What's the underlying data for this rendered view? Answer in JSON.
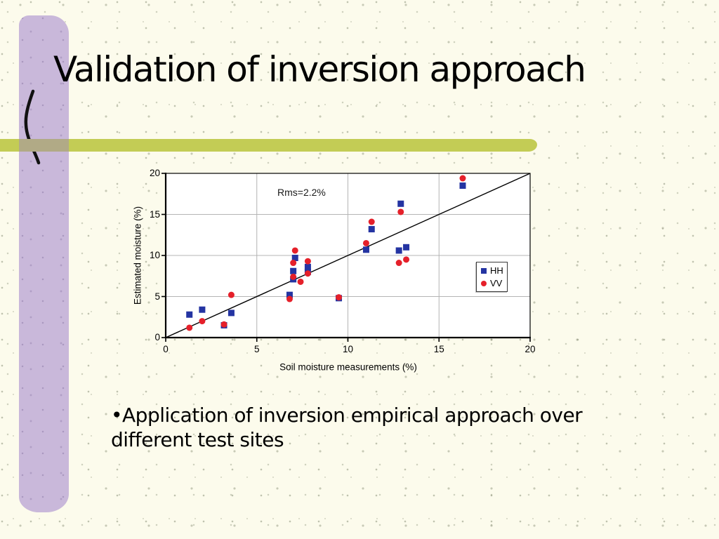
{
  "slide": {
    "title": "Validation of inversion approach",
    "bullet_char": "•",
    "bullet_line1": "Application of inversion empirical approach over",
    "bullet_line2": "different test sites"
  },
  "colors": {
    "background": "#fcfbec",
    "purple_band": "#c9b8da",
    "olive_band": "#c3cc55",
    "band_overlap": "#b1aa86",
    "gridline": "#b4b4b4",
    "axis": "#000000",
    "hh_marker": "#2434a2",
    "vv_marker": "#e5202a"
  },
  "chart_data": {
    "type": "scatter",
    "title": "",
    "xlabel": "Soil moisture measurements (%)",
    "ylabel": "Estimated moisture (%)",
    "xlim": [
      0,
      20
    ],
    "ylim": [
      0,
      20
    ],
    "x_ticks": [
      0,
      5,
      10,
      15,
      20
    ],
    "y_ticks": [
      0,
      5,
      10,
      15,
      20
    ],
    "grid": true,
    "annotation": "Rms=2.2%",
    "reference_line": {
      "from": [
        0,
        0
      ],
      "to": [
        20,
        20
      ]
    },
    "legend_position": "middle-right",
    "series": [
      {
        "name": "HH",
        "marker": "square",
        "color": "#2434a2",
        "points": [
          [
            1.3,
            2.8
          ],
          [
            2.0,
            3.4
          ],
          [
            3.2,
            1.5
          ],
          [
            3.6,
            3.0
          ],
          [
            6.8,
            5.2
          ],
          [
            7.0,
            7.1
          ],
          [
            7.0,
            8.1
          ],
          [
            7.1,
            9.7
          ],
          [
            7.8,
            8.0
          ],
          [
            7.8,
            8.6
          ],
          [
            9.5,
            4.8
          ],
          [
            11.0,
            10.7
          ],
          [
            11.3,
            13.2
          ],
          [
            12.8,
            10.6
          ],
          [
            12.9,
            16.3
          ],
          [
            13.2,
            11.0
          ],
          [
            16.3,
            18.5
          ]
        ]
      },
      {
        "name": "VV",
        "marker": "circle",
        "color": "#e5202a",
        "points": [
          [
            1.3,
            1.2
          ],
          [
            2.0,
            2.0
          ],
          [
            3.2,
            1.6
          ],
          [
            3.6,
            5.2
          ],
          [
            6.8,
            4.7
          ],
          [
            7.0,
            7.4
          ],
          [
            7.0,
            9.1
          ],
          [
            7.1,
            10.6
          ],
          [
            7.4,
            6.8
          ],
          [
            7.8,
            7.8
          ],
          [
            7.8,
            9.3
          ],
          [
            9.5,
            4.9
          ],
          [
            11.0,
            11.5
          ],
          [
            11.3,
            14.1
          ],
          [
            12.8,
            9.1
          ],
          [
            12.9,
            15.3
          ],
          [
            13.2,
            9.5
          ],
          [
            16.3,
            19.4
          ]
        ]
      }
    ]
  }
}
